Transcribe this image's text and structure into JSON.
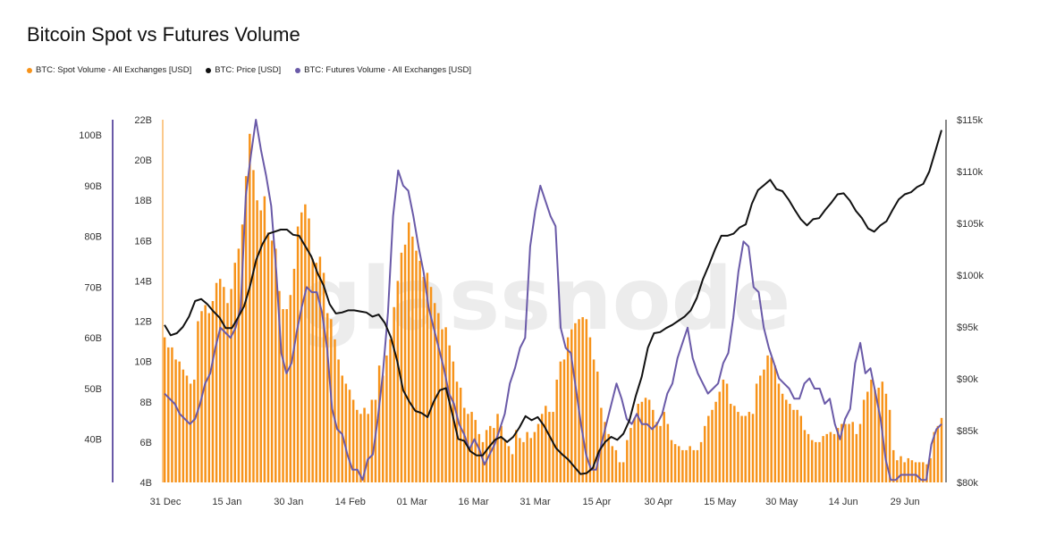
{
  "title": "Bitcoin Spot vs Futures Volume",
  "watermark": "glassnode",
  "legend": [
    {
      "label": "BTC: Spot Volume - All Exchanges [USD]",
      "color": "#f7931a"
    },
    {
      "label": "BTC: Price [USD]",
      "color": "#111111"
    },
    {
      "label": "BTC: Futures Volume - All Exchanges [USD]",
      "color": "#6a5aa8"
    }
  ],
  "chart_data": {
    "type": "bar",
    "x_tick_labels": [
      "31 Dec",
      "15 Jan",
      "30 Jan",
      "14 Feb",
      "01 Mar",
      "16 Mar",
      "31 Mar",
      "15 Apr",
      "30 Apr",
      "15 May",
      "30 May",
      "14 Jun",
      "29 Jun"
    ],
    "x_days": 190,
    "spot_axis": {
      "ticks": [
        "4B",
        "6B",
        "8B",
        "10B",
        "12B",
        "14B",
        "16B",
        "18B",
        "20B",
        "22B"
      ],
      "range": [
        4,
        22
      ]
    },
    "futures_axis": {
      "ticks": [
        "40B",
        "50B",
        "60B",
        "70B",
        "80B",
        "90B",
        "100B"
      ],
      "range": [
        31.5,
        103
      ]
    },
    "price_axis": {
      "ticks": [
        "$80k",
        "$85k",
        "$90k",
        "$95k",
        "$100k",
        "$105k",
        "$110k",
        "$115k"
      ],
      "range": [
        80,
        115
      ]
    },
    "series": [
      {
        "name": "BTC: Spot Volume - All Exchanges [USD]",
        "axis": "spot",
        "color": "#f7931a",
        "type": "bar",
        "values": [
          11.2,
          10.7,
          10.7,
          10.1,
          10.0,
          9.6,
          9.3,
          8.9,
          9.1,
          12.0,
          12.5,
          12.8,
          12.4,
          13.0,
          13.9,
          14.1,
          13.7,
          12.9,
          13.6,
          14.9,
          15.6,
          16.8,
          19.2,
          21.3,
          19.5,
          18.0,
          17.5,
          18.2,
          16.4,
          16.0,
          15.6,
          13.5,
          12.6,
          12.6,
          13.3,
          14.6,
          16.7,
          17.4,
          17.8,
          17.1,
          15.1,
          14.9,
          15.2,
          14.4,
          12.4,
          12.1,
          11.1,
          10.1,
          9.3,
          8.9,
          8.6,
          8.1,
          7.6,
          7.4,
          7.7,
          7.4,
          8.1,
          8.1,
          9.8,
          9.3,
          10.3,
          11.1,
          12.7,
          14.0,
          15.4,
          15.8,
          16.9,
          16.2,
          15.5,
          15.0,
          14.2,
          14.4,
          13.7,
          12.9,
          12.4,
          11.6,
          11.7,
          10.8,
          10.0,
          9.0,
          8.7,
          7.7,
          7.4,
          7.5,
          7.1,
          6.4,
          6.0,
          6.6,
          6.8,
          6.7,
          7.4,
          6.8,
          6.1,
          5.8,
          5.4,
          6.6,
          6.2,
          6.0,
          6.5,
          6.2,
          6.5,
          6.9,
          7.4,
          7.8,
          7.5,
          7.5,
          9.1,
          10.0,
          10.1,
          11.2,
          11.6,
          11.9,
          12.1,
          12.2,
          12.1,
          11.2,
          10.1,
          9.5,
          7.7,
          7.0,
          6.4,
          5.8,
          5.6,
          5.0,
          5.0,
          6.1,
          6.7,
          7.2,
          7.9,
          8.0,
          8.2,
          8.1,
          7.6,
          7.0,
          6.8,
          7.5,
          6.9,
          6.1,
          5.9,
          5.8,
          5.6,
          5.6,
          5.8,
          5.6,
          5.6,
          6.0,
          6.8,
          7.3,
          7.6,
          8.0,
          8.5,
          9.1,
          8.9,
          7.9,
          7.8,
          7.5,
          7.3,
          7.3,
          7.5,
          7.4,
          8.9,
          9.3,
          9.6,
          10.3,
          10.2,
          9.8,
          8.9,
          8.4,
          8.1,
          7.9,
          7.6,
          7.6,
          7.3,
          6.6,
          6.4,
          6.1,
          6.0,
          6.0,
          6.3,
          6.4,
          6.5,
          6.4,
          6.7,
          6.9,
          6.9,
          6.9,
          7.0,
          6.4,
          6.9,
          8.1,
          8.5,
          9.1,
          8.6,
          8.7,
          9.0,
          8.4,
          7.6,
          5.6,
          5.1,
          5.3,
          5.0,
          5.2,
          5.1,
          5.0,
          5.0,
          5.0,
          4.9,
          5.2,
          6.5,
          6.8,
          7.2
        ]
      },
      {
        "name": "BTC: Price [USD]",
        "axis": "price",
        "color": "#111111",
        "type": "line",
        "values": [
          95.2,
          94.2,
          94.4,
          95.0,
          96.0,
          97.5,
          97.7,
          97.2,
          96.5,
          95.9,
          94.9,
          94.9,
          95.9,
          97.0,
          99.0,
          101.5,
          103.0,
          104.0,
          104.2,
          104.4,
          104.4,
          103.9,
          103.8,
          102.8,
          101.8,
          100.2,
          99.0,
          97.2,
          96.3,
          96.4,
          96.6,
          96.6,
          96.5,
          96.4,
          96.0,
          96.2,
          95.4,
          94.0,
          91.8,
          88.9,
          87.8,
          86.9,
          86.7,
          86.3,
          87.8,
          88.9,
          89.1,
          86.7,
          84.2,
          84.0,
          83.0,
          82.6,
          82.6,
          83.4,
          84.1,
          84.4,
          83.9,
          84.4,
          85.3,
          86.4,
          86.0,
          86.3,
          85.5,
          84.4,
          83.3,
          82.7,
          82.2,
          81.5,
          80.8,
          80.9,
          81.4,
          83.0,
          83.9,
          84.4,
          84.1,
          84.7,
          86.0,
          88.3,
          90.2,
          93.0,
          94.4,
          94.5,
          94.9,
          95.2,
          95.6,
          96.0,
          96.6,
          97.8,
          99.6,
          101.0,
          102.5,
          103.8,
          103.8,
          104.0,
          104.6,
          104.9,
          106.9,
          108.2,
          108.7,
          109.2,
          108.3,
          108.1,
          107.3,
          106.3,
          105.4,
          104.8,
          105.4,
          105.5,
          106.3,
          107.0,
          107.8,
          107.9,
          107.2,
          106.2,
          105.5,
          104.5,
          104.2,
          104.8,
          105.2,
          106.3,
          107.3,
          107.8,
          108.0,
          108.5,
          108.8,
          110.0,
          112.0,
          114.0
        ]
      },
      {
        "name": "BTC: Futures Volume - All Exchanges [USD]",
        "axis": "futures",
        "color": "#6a5aa8",
        "type": "line",
        "values": [
          49,
          48,
          47,
          45,
          44,
          43,
          44,
          47,
          51,
          53,
          58,
          62,
          61,
          60,
          62,
          66,
          88,
          96,
          103,
          97,
          92,
          86,
          73,
          57,
          53,
          55,
          61,
          66,
          70,
          69,
          69,
          65,
          58,
          46,
          42,
          41,
          37,
          34,
          34,
          32,
          36,
          37,
          44,
          53,
          65,
          84,
          93,
          90,
          89,
          84,
          78,
          73,
          66,
          62,
          58,
          54,
          49,
          47,
          43,
          41,
          38,
          40,
          38,
          35,
          37,
          39,
          42,
          45,
          51,
          54,
          58,
          60,
          78,
          85,
          90,
          87,
          84,
          82,
          62,
          58,
          57,
          50,
          43,
          37,
          34,
          34,
          39,
          43,
          47,
          51,
          48,
          44,
          43,
          45,
          43,
          43,
          42,
          43,
          45,
          49,
          51,
          56,
          59,
          62,
          56,
          53,
          51,
          49,
          50,
          51,
          55,
          57,
          64,
          73,
          79,
          78,
          70,
          69,
          62,
          58,
          55,
          52,
          51,
          50,
          48,
          48,
          51,
          52,
          50,
          50,
          47,
          48,
          43,
          40,
          44,
          46,
          55,
          59,
          53,
          54,
          49,
          44,
          36,
          32,
          32,
          33,
          33,
          33,
          33,
          32,
          32,
          39,
          42,
          43
        ]
      }
    ]
  }
}
